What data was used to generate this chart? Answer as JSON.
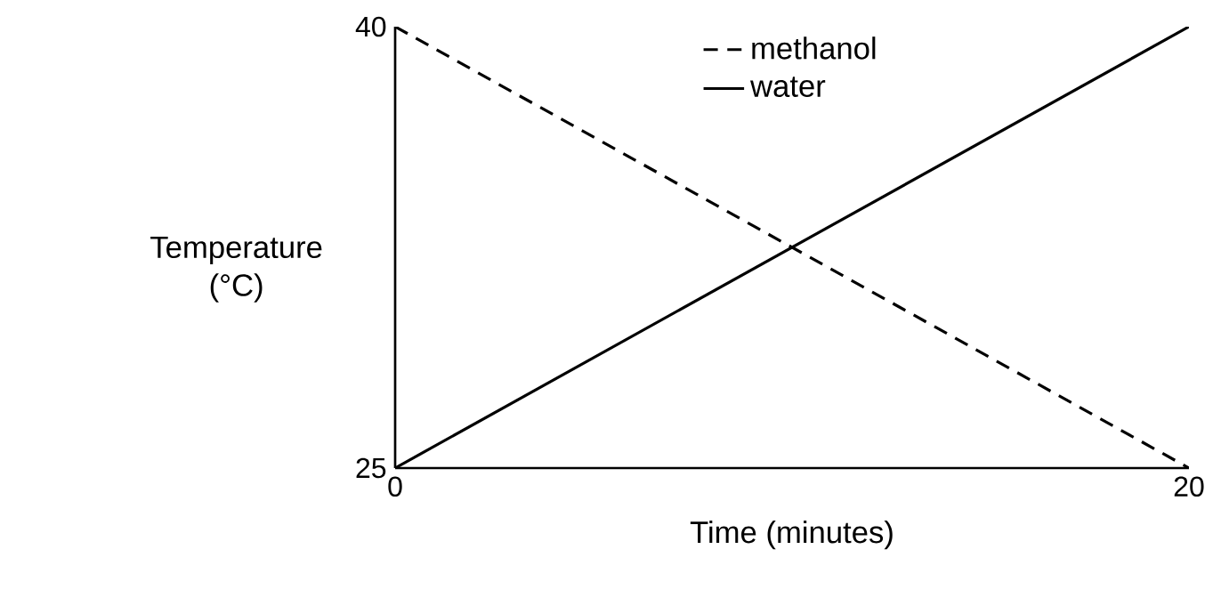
{
  "chart_data": {
    "type": "line",
    "xlabel": "Time (minutes)",
    "ylabel": "Temperature (°C)",
    "x": [
      0,
      20
    ],
    "xlim": [
      0,
      20
    ],
    "ylim": [
      25,
      40
    ],
    "xticks": [
      0,
      20
    ],
    "yticks": [
      25,
      40
    ],
    "legend": "top",
    "series": [
      {
        "name": "methanol",
        "color": "#000000",
        "values": [
          40,
          25
        ],
        "line_style": "dashed"
      },
      {
        "name": "water",
        "color": "#000000",
        "values": [
          25,
          40
        ],
        "line_style": "solid"
      }
    ]
  }
}
